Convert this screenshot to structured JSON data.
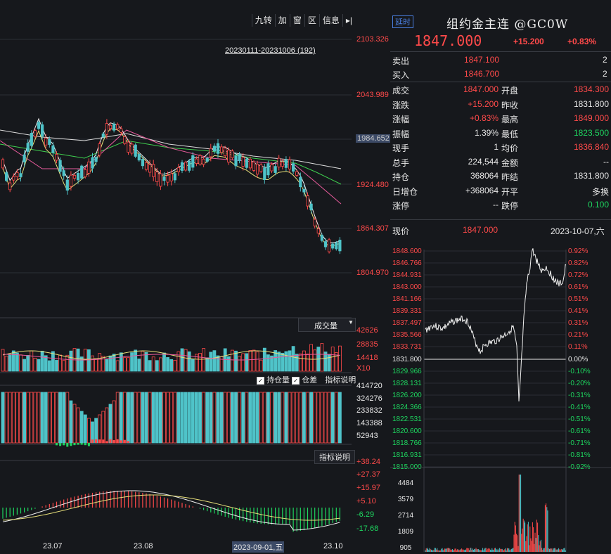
{
  "toolbar": {
    "items": [
      "九转",
      "加",
      "窗",
      "区",
      "信息",
      "▸|"
    ]
  },
  "main_chart": {
    "range_label": "20230111-20231006 (192)",
    "price_ticks": [
      "2103.326",
      "2043.989",
      "1984.652",
      "1924.480",
      "1864.307",
      "1804.970"
    ],
    "highlight_tick": "1984.652"
  },
  "volume_panel": {
    "button": "成交量",
    "ticks": [
      "42626",
      "28835",
      "14418"
    ],
    "unit": "X10"
  },
  "oi_panel": {
    "check1": "持仓量",
    "check2": "仓差",
    "button": "指标说明",
    "ticks": [
      "414720",
      "324276",
      "233832",
      "143388",
      "52943"
    ]
  },
  "macd_panel": {
    "button": "指标说明",
    "ticks": [
      "+38.24",
      "+27.37",
      "+15.97",
      "+5.10",
      "-6.29",
      "-17.68"
    ]
  },
  "x_axis": {
    "labels": [
      "23.07",
      "23.08",
      "2023-09-01,五",
      "23.10"
    ]
  },
  "quote": {
    "rt_tag": "延时",
    "title": "组约金主连 @GC0W",
    "price": "1847.000",
    "change": "+15.200",
    "change_pct": "+0.83%",
    "sell_label": "卖出",
    "sell_price": "1847.100",
    "sell_vol": "2",
    "buy_label": "买入",
    "buy_price": "1846.700",
    "buy_vol": "2",
    "rows": [
      {
        "l1": "成交",
        "v1": "1847.000",
        "c1": "red",
        "l2": "开盘",
        "v2": "1834.300",
        "c2": "red"
      },
      {
        "l1": "涨跌",
        "v1": "+15.200",
        "c1": "red",
        "l2": "昨收",
        "v2": "1831.800",
        "c2": "wht"
      },
      {
        "l1": "涨幅",
        "v1": "+0.83%",
        "c1": "red",
        "l2": "最高",
        "v2": "1849.000",
        "c2": "red"
      },
      {
        "l1": "振幅",
        "v1": "1.39%",
        "c1": "wht",
        "l2": "最低",
        "v2": "1823.500",
        "c2": "grn"
      },
      {
        "l1": "现手",
        "v1": "1",
        "c1": "wht",
        "l2": "均价",
        "v2": "1836.840",
        "c2": "red"
      },
      {
        "l1": "总手",
        "v1": "224,544",
        "c1": "wht",
        "l2": "金额",
        "v2": "--",
        "c2": "wht"
      },
      {
        "l1": "持仓",
        "v1": "368064",
        "c1": "wht",
        "l2": "昨结",
        "v2": "1831.800",
        "c2": "wht"
      },
      {
        "l1": "日增仓",
        "v1": "+368064",
        "c1": "wht",
        "l2": "开平",
        "v2": "多换",
        "c2": "wht"
      },
      {
        "l1": "涨停",
        "v1": "--",
        "c1": "wht",
        "l2": "跌停",
        "v2": "0.100",
        "c2": "grn"
      }
    ],
    "now_label": "现价",
    "now_value": "1847.000",
    "date_label": "2023-10-07,六"
  },
  "intraday": {
    "price_ticks_up": [
      "1848.600",
      "1846.766",
      "1844.931",
      "1843.000",
      "1841.166",
      "1839.331",
      "1837.497",
      "1835.566",
      "1833.731"
    ],
    "pct_ticks_up": [
      "0.92%",
      "0.82%",
      "0.72%",
      "0.61%",
      "0.51%",
      "0.41%",
      "0.31%",
      "0.21%",
      "0.11%"
    ],
    "base_price": "1831.800",
    "base_pct": "0.00%",
    "price_ticks_down": [
      "1829.966",
      "1828.131",
      "1826.200",
      "1824.366",
      "1822.531",
      "1820.600",
      "1818.766",
      "1816.931",
      "1815.000"
    ],
    "pct_ticks_down": [
      "-0.10%",
      "-0.20%",
      "-0.31%",
      "-0.41%",
      "-0.51%",
      "-0.61%",
      "-0.71%",
      "-0.81%",
      "-0.92%"
    ],
    "vol_ticks": [
      "4484",
      "3579",
      "2714",
      "1809",
      "905"
    ]
  },
  "colors": {
    "up": "#ff4a4a",
    "down": "#1ed760",
    "bar_cyan": "#4fc3c9",
    "bg": "#16181c"
  }
}
